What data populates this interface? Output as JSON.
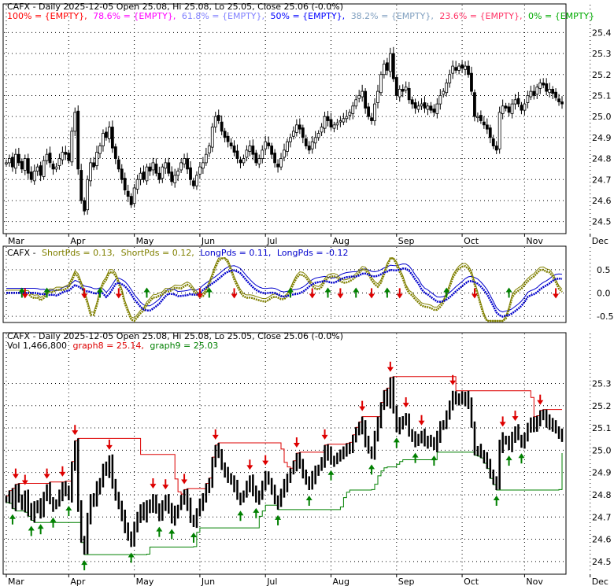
{
  "colors": {
    "background": "#ffffff",
    "frame": "#000000",
    "grid": "#000000",
    "candle": "#000000",
    "up_arrow": "#008000",
    "down_arrow": "#dd0000",
    "fib_100": "#ff0000",
    "fib_786": "#ff00ff",
    "fib_618": "#8080ff",
    "fib_50": "#0000ff",
    "fib_382": "#80a0c0",
    "fib_236": "#ff3366",
    "fib_0": "#00aa00",
    "short_pds": "#808000",
    "long_pds": "#0000cc",
    "graph8": "#dd0000",
    "graph9": "#008000"
  },
  "top_panel": {
    "header": "CAFX - Daily 2025-12-05 Open 25.08, Hi 25.08, Lo 25.05, Close 25.06 (-0.0%)",
    "fib_labels": [
      {
        "text": "100% = {EMPTY},",
        "color_key": "fib_100"
      },
      {
        "text": "78.6% = {EMPTY},",
        "color_key": "fib_786"
      },
      {
        "text": "61.8% = {EMPTY},",
        "color_key": "fib_618"
      },
      {
        "text": "50% = {EMPTY},",
        "color_key": "fib_50"
      },
      {
        "text": "38.2% = {EMPTY},",
        "color_key": "fib_382"
      },
      {
        "text": "23.6% = {EMPTY},",
        "color_key": "fib_236"
      },
      {
        "text": "0% = {EMPTY}",
        "color_key": "fib_0"
      }
    ],
    "y_ticks": [
      "25.4",
      "25.3",
      "25.2",
      "25.1",
      "25.0",
      "24.9",
      "24.8",
      "24.7",
      "24.6",
      "24.5"
    ],
    "x_months": [
      "Mar",
      "Apr",
      "May",
      "Jun",
      "Jul",
      "Aug",
      "Sep",
      "Oct",
      "Nov",
      "Dec"
    ]
  },
  "mid_panel": {
    "header_prefix": "CAFX -",
    "items": [
      {
        "text": "ShortPds = 0.13,",
        "color_key": "short_pds"
      },
      {
        "text": "ShortPds = 0.12,",
        "color_key": "short_pds"
      },
      {
        "text": "LongPds = 0.11,",
        "color_key": "long_pds"
      },
      {
        "text": "LongPds = -0.12",
        "color_key": "long_pds"
      }
    ],
    "y_ticks": [
      "0.5",
      "0.0",
      "-0.5"
    ]
  },
  "bottom_panel": {
    "header": "CAFX - Daily 2025-12-05 Open 25.08, Hi 25.08, Lo 25.05, Close 25.06 (-0.0%)",
    "vol_text": "Vol 1,466,800",
    "graph8_text": "graph8 = 25.14,",
    "graph9_text": "graph9 = 25.03",
    "y_ticks": [
      "25.3",
      "25.2",
      "25.1",
      "25.0",
      "24.9",
      "24.8",
      "24.7",
      "24.6",
      "24.5"
    ],
    "x_months": [
      "Mar",
      "Apr",
      "May",
      "Jun",
      "Jul",
      "Aug",
      "Sep",
      "Oct",
      "Nov",
      "Dec"
    ]
  },
  "chart_data": {
    "type": "candlestick",
    "ticker": "CAFX",
    "price_range": [
      24.45,
      25.45
    ],
    "indicator_range": [
      -0.6,
      0.75
    ],
    "month_start_index": [
      0,
      20,
      41,
      62,
      83,
      104,
      125,
      146,
      166,
      187
    ],
    "close": [
      24.78,
      24.8,
      24.76,
      24.82,
      24.78,
      24.75,
      24.8,
      24.73,
      24.7,
      24.74,
      24.76,
      24.72,
      24.79,
      24.82,
      24.78,
      24.75,
      24.76,
      24.8,
      24.83,
      24.82,
      24.79,
      24.93,
      25.02,
      24.75,
      24.6,
      24.55,
      24.7,
      24.78,
      24.76,
      24.83,
      24.86,
      24.92,
      24.9,
      24.95,
      24.85,
      24.8,
      24.75,
      24.7,
      24.65,
      24.62,
      24.58,
      24.66,
      24.7,
      24.73,
      24.7,
      24.76,
      24.74,
      24.78,
      24.73,
      24.7,
      24.76,
      24.78,
      24.73,
      24.69,
      24.72,
      24.74,
      24.78,
      24.8,
      24.75,
      24.7,
      24.67,
      24.72,
      24.76,
      24.78,
      24.82,
      24.86,
      24.95,
      25.0,
      24.98,
      24.93,
      24.9,
      24.88,
      24.86,
      24.83,
      24.8,
      24.78,
      24.8,
      24.84,
      24.86,
      24.82,
      24.78,
      24.8,
      24.84,
      24.88,
      24.86,
      24.82,
      24.78,
      24.76,
      24.8,
      24.84,
      24.88,
      24.9,
      24.93,
      24.96,
      24.94,
      24.9,
      24.86,
      24.84,
      24.88,
      24.9,
      24.92,
      24.95,
      25.0,
      24.98,
      24.95,
      24.96,
      24.97,
      24.98,
      24.99,
      25.0,
      25.02,
      25.05,
      25.08,
      25.1,
      25.12,
      25.04,
      25.0,
      24.98,
      25.06,
      25.12,
      25.2,
      25.25,
      25.22,
      25.3,
      25.18,
      25.1,
      25.13,
      25.12,
      25.14,
      25.08,
      25.06,
      25.04,
      25.05,
      25.06,
      25.04,
      25.05,
      25.03,
      25.02,
      25.06,
      25.1,
      25.12,
      25.16,
      25.2,
      25.24,
      25.22,
      25.24,
      25.23,
      25.24,
      25.2,
      25.12,
      25.0,
      25.0,
      24.98,
      24.96,
      24.94,
      24.9,
      24.86,
      24.84,
      25.02,
      25.05,
      25.04,
      25.02,
      25.06,
      25.08,
      25.06,
      25.03,
      25.06,
      25.1,
      25.12,
      25.1,
      25.14,
      25.16,
      25.15,
      25.12,
      25.13,
      25.11,
      25.09,
      25.07,
      25.06
    ]
  }
}
